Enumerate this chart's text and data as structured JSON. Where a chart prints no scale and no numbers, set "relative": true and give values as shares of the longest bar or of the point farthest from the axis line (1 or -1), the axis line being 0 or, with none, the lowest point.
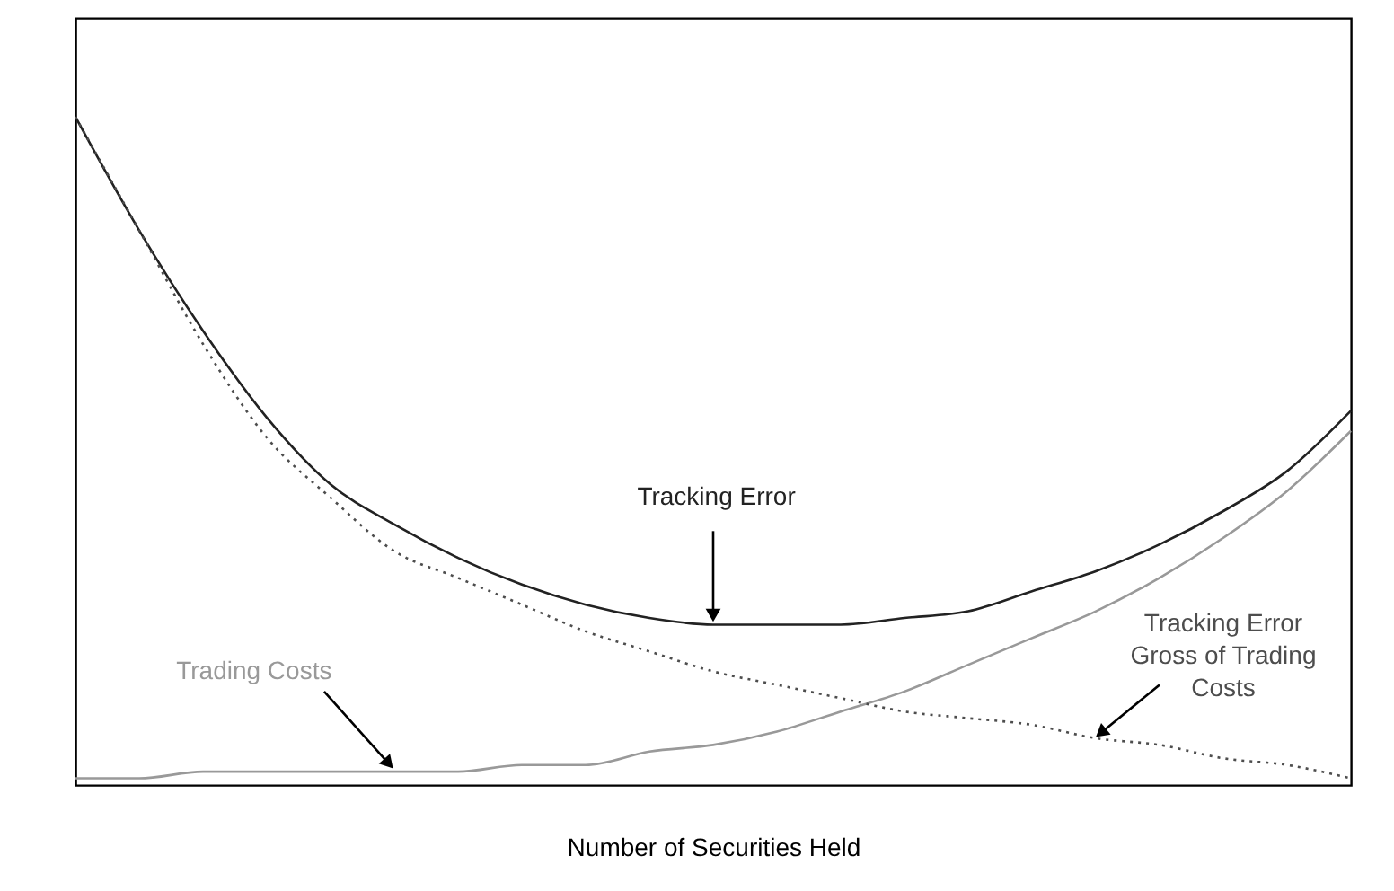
{
  "chart_data": {
    "type": "line",
    "relative": true,
    "xlabel": "Number of Securities Held",
    "tick_labels": false,
    "grid": false,
    "legend": false,
    "categories": [
      null,
      null,
      null,
      null,
      null,
      null,
      null,
      null,
      null,
      null,
      null,
      null,
      null,
      null,
      null,
      null,
      null,
      null,
      null,
      null,
      null
    ],
    "series": [
      {
        "name": "Tracking Error",
        "color": "#222222",
        "line_style": "solid",
        "values": [
          1.0,
          0.83,
          0.68,
          0.55,
          0.45,
          0.39,
          0.34,
          0.3,
          0.27,
          0.25,
          0.24,
          0.24,
          0.24,
          0.25,
          0.26,
          0.29,
          0.32,
          0.36,
          0.41,
          0.47,
          0.56
        ]
      },
      {
        "name": "Trading Costs",
        "color": "#999999",
        "line_style": "solid",
        "values": [
          0.01,
          0.01,
          0.02,
          0.02,
          0.02,
          0.02,
          0.02,
          0.03,
          0.03,
          0.05,
          0.06,
          0.08,
          0.11,
          0.14,
          0.18,
          0.22,
          0.26,
          0.31,
          0.37,
          0.44,
          0.53
        ]
      },
      {
        "name": "Tracking Error Gross of Trading Costs",
        "color": "#4d4d4d",
        "line_style": "dotted",
        "values": [
          1.0,
          0.83,
          0.66,
          0.52,
          0.43,
          0.35,
          0.31,
          0.27,
          0.23,
          0.2,
          0.17,
          0.15,
          0.13,
          0.11,
          0.1,
          0.09,
          0.07,
          0.06,
          0.04,
          0.03,
          0.01
        ]
      }
    ]
  }
}
